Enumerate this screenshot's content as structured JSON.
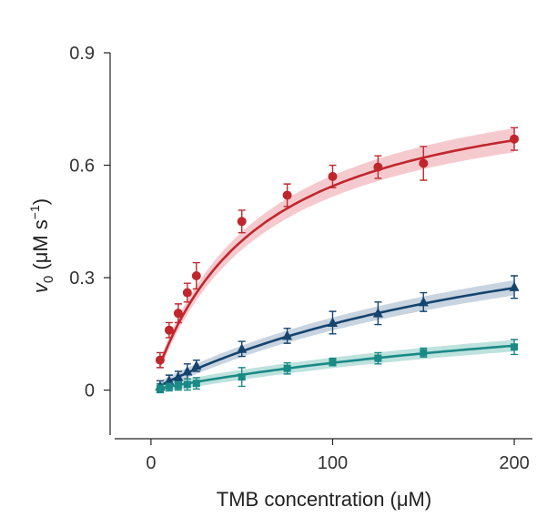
{
  "chart_data": {
    "type": "scatter",
    "xlabel": "TMB concentration (μM)",
    "ylabel_main": "v",
    "ylabel_sub": "0",
    "ylabel_units_a": " (μM s",
    "ylabel_units_sup": "−1",
    "ylabel_units_b": ")",
    "xlim": [
      -20,
      210
    ],
    "ylim": [
      -0.12,
      0.9
    ],
    "xticks": [
      0,
      100,
      200
    ],
    "xtick_labels": [
      "0",
      "100",
      "200"
    ],
    "yticks": [
      0,
      0.3,
      0.6,
      0.9
    ],
    "ytick_labels": [
      "0",
      "0.3",
      "0.6",
      "0.9"
    ],
    "grid": false,
    "series": [
      {
        "color": "#c0272d",
        "band_color": "#f2b8bf",
        "marker": "circle",
        "fit": {
          "vmax": 0.86,
          "km": 58
        },
        "x": [
          5,
          10,
          15,
          20,
          25,
          50,
          75,
          100,
          125,
          150,
          200
        ],
        "y": [
          0.08,
          0.16,
          0.205,
          0.26,
          0.305,
          0.45,
          0.52,
          0.57,
          0.595,
          0.605,
          0.67
        ],
        "err": [
          0.02,
          0.02,
          0.025,
          0.025,
          0.035,
          0.03,
          0.03,
          0.03,
          0.03,
          0.045,
          0.03
        ]
      },
      {
        "color": "#15446e",
        "band_color": "#b6c6d6",
        "marker": "triangle",
        "fit": {
          "vmax": 0.6,
          "km": 240
        },
        "x": [
          5,
          10,
          15,
          20,
          25,
          50,
          75,
          100,
          125,
          150,
          200
        ],
        "y": [
          0.01,
          0.025,
          0.035,
          0.05,
          0.065,
          0.11,
          0.145,
          0.18,
          0.205,
          0.235,
          0.275
        ],
        "err": [
          0.015,
          0.015,
          0.015,
          0.02,
          0.015,
          0.02,
          0.02,
          0.03,
          0.03,
          0.025,
          0.03
        ]
      },
      {
        "color": "#1a8a86",
        "band_color": "#a8d8d2",
        "marker": "square",
        "fit": {
          "vmax": 0.32,
          "km": 340
        },
        "x": [
          5,
          10,
          15,
          20,
          25,
          50,
          75,
          100,
          125,
          150,
          200
        ],
        "y": [
          0.005,
          0.01,
          0.012,
          0.015,
          0.018,
          0.035,
          0.058,
          0.075,
          0.085,
          0.1,
          0.115
        ],
        "err": [
          0.012,
          0.012,
          0.012,
          0.015,
          0.015,
          0.025,
          0.015,
          0.01,
          0.015,
          0.012,
          0.02
        ]
      }
    ]
  }
}
